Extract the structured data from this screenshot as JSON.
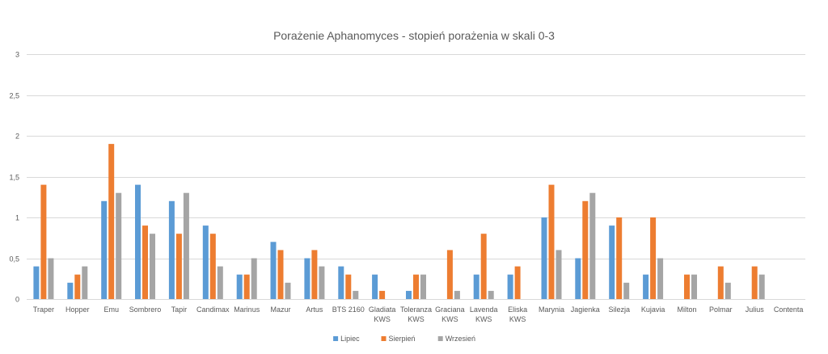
{
  "chart_data": {
    "type": "bar",
    "title": "Porażenie Aphanomyces - stopień porażenia w skali 0-3",
    "xlabel": "",
    "ylabel": "",
    "ylim": [
      0,
      3
    ],
    "yticks": [
      "0",
      "0,5",
      "1",
      "1,5",
      "2",
      "2,5",
      "3"
    ],
    "grid": true,
    "legend_position": "bottom",
    "categories": [
      [
        "Traper"
      ],
      [
        "Hopper"
      ],
      [
        "Emu"
      ],
      [
        "Sombrero"
      ],
      [
        "Tapir"
      ],
      [
        "Candimax"
      ],
      [
        "Marinus"
      ],
      [
        "Mazur"
      ],
      [
        "Artus"
      ],
      [
        "BTS 2160"
      ],
      [
        "Gladiata",
        "KWS"
      ],
      [
        "Toleranza",
        "KWS"
      ],
      [
        "Graciana",
        "KWS"
      ],
      [
        "Lavenda",
        "KWS"
      ],
      [
        "Eliska",
        "KWS"
      ],
      [
        "Marynia"
      ],
      [
        "Jagienka"
      ],
      [
        "Silezja"
      ],
      [
        "Kujavia"
      ],
      [
        "Milton"
      ],
      [
        "Polmar"
      ],
      [
        "Julius"
      ],
      [
        "Contenta"
      ]
    ],
    "series": [
      {
        "name": "Lipiec",
        "color": "#5B9BD5",
        "values": [
          0.4,
          0.2,
          1.2,
          1.4,
          1.2,
          0.9,
          0.3,
          0.7,
          0.5,
          0.4,
          0.3,
          0.1,
          0,
          0.3,
          0.3,
          1.0,
          0.5,
          0.9,
          0.3,
          0,
          0,
          0,
          0
        ]
      },
      {
        "name": "Sierpień",
        "color": "#ED7D31",
        "values": [
          1.4,
          0.3,
          1.9,
          0.9,
          0.8,
          0.8,
          0.3,
          0.6,
          0.6,
          0.3,
          0.1,
          0.3,
          0.6,
          0.8,
          0.4,
          1.4,
          1.2,
          1.0,
          1.0,
          0.3,
          0.4,
          0.4,
          0
        ]
      },
      {
        "name": "Wrzesień",
        "color": "#A5A5A5",
        "values": [
          0.5,
          0.4,
          1.3,
          0.8,
          1.3,
          0.4,
          0.5,
          0.2,
          0.4,
          0.1,
          0,
          0.3,
          0.1,
          0.1,
          0,
          0.6,
          1.3,
          0.2,
          0.5,
          0.3,
          0.2,
          0.3,
          0
        ]
      }
    ]
  }
}
